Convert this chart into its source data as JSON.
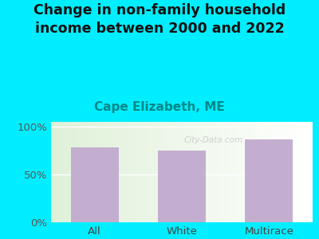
{
  "categories": [
    "All",
    "White",
    "Multirace"
  ],
  "values": [
    78,
    75,
    87
  ],
  "bar_color": "#c4aed0",
  "title": "Change in non-family household\nincome between 2000 and 2022",
  "subtitle": "Cape Elizabeth, ME",
  "subtitle_color": "#008888",
  "title_color": "#111111",
  "title_fontsize": 12.5,
  "subtitle_fontsize": 11,
  "tick_label_fontsize": 9.5,
  "xlabel_fontsize": 9.5,
  "bg_outer": "#00eeff",
  "bg_plot_left": "#dff0d8",
  "bg_plot_right": "#f5fff5",
  "yticks": [
    0,
    50,
    100
  ],
  "ytick_labels": [
    "0%",
    "50%",
    "100%"
  ],
  "ylim": [
    0,
    105
  ],
  "bar_width": 0.55,
  "watermark": "City-Data.com"
}
